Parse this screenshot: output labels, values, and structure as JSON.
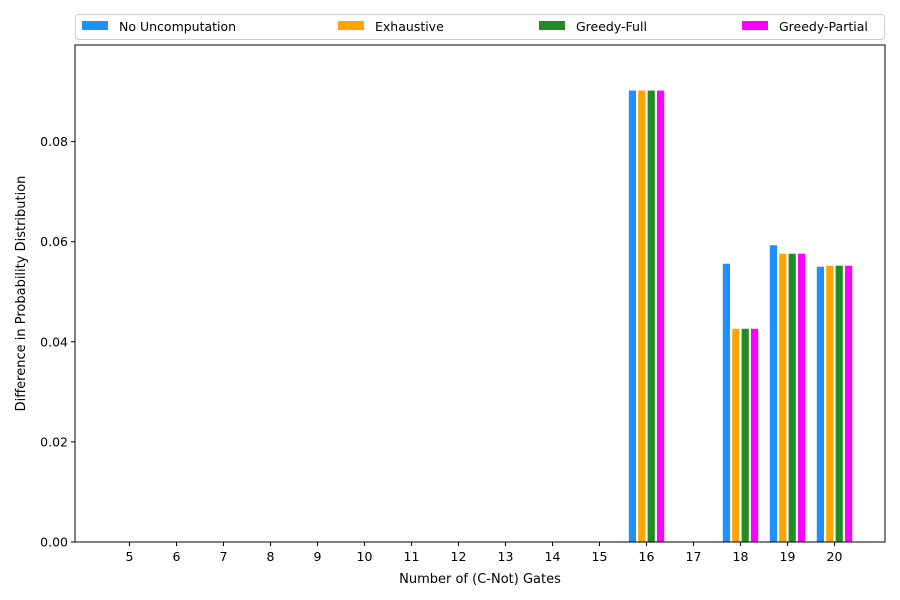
{
  "chart_data": {
    "type": "bar",
    "xlabel": "Number of (C-Not) Gates",
    "ylabel": "Difference in Probability Distribution",
    "categories": [
      "5",
      "6",
      "7",
      "8",
      "9",
      "10",
      "11",
      "12",
      "13",
      "14",
      "15",
      "16",
      "17",
      "18",
      "19",
      "20"
    ],
    "ylim": [
      0,
      0.0993
    ],
    "yticks": [
      "0.00",
      "0.02",
      "0.04",
      "0.06",
      "0.08"
    ],
    "legend_position": "top",
    "grid": false,
    "series": [
      {
        "name": "No Uncomputation",
        "color": "#1e90ff",
        "values": [
          0,
          0,
          0,
          0,
          0,
          0,
          0,
          0,
          0,
          0,
          0,
          0.0902,
          0,
          0.0556,
          0.0593,
          0.055
        ]
      },
      {
        "name": "Exhaustive",
        "color": "#ffa500",
        "values": [
          0,
          0,
          0,
          0,
          0,
          0,
          0,
          0,
          0,
          0,
          0,
          0.0902,
          0,
          0.0426,
          0.0576,
          0.0552
        ]
      },
      {
        "name": "Greedy-Full",
        "color": "#228b22",
        "values": [
          0,
          0,
          0,
          0,
          0,
          0,
          0,
          0,
          0,
          0,
          0,
          0.0902,
          0,
          0.0426,
          0.0576,
          0.0552
        ]
      },
      {
        "name": "Greedy-Partial",
        "color": "#ff00ff",
        "values": [
          0,
          0,
          0,
          0,
          0,
          0,
          0,
          0,
          0,
          0,
          0,
          0.0902,
          0,
          0.0426,
          0.0576,
          0.0552
        ]
      }
    ]
  }
}
